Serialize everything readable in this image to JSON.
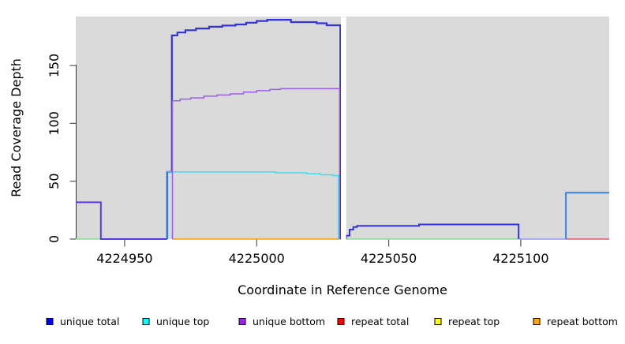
{
  "chart_data": {
    "type": "line",
    "title": "",
    "xlabel": "Coordinate in Reference Genome",
    "ylabel": "Read Coverage Depth",
    "xlim": [
      4224931.5,
      4225133.5
    ],
    "ylim": [
      0,
      192.3
    ],
    "x_ticks": [
      "4224950",
      "4225000",
      "4225050",
      "4225100"
    ],
    "x_tick_values": [
      4224950,
      4225000,
      4225050,
      4225100
    ],
    "y_ticks": [
      "0",
      "50",
      "100",
      "150"
    ],
    "y_tick_values": [
      0,
      50,
      100,
      150
    ],
    "panel_background": "#DADADA",
    "gap": {
      "x0": 4225031.9,
      "x1": 4225033.9
    },
    "grid": false,
    "legend_position": "bottom",
    "legend": [
      {
        "label": "unique total",
        "color": "#0000FF"
      },
      {
        "label": "unique top",
        "color": "#00FFFF"
      },
      {
        "label": "unique bottom",
        "color": "#A020F0"
      },
      {
        "label": "repeat total",
        "color": "#FF0000"
      },
      {
        "label": "repeat top",
        "color": "#FFFF00"
      },
      {
        "label": "repeat bottom",
        "color": "#FFA500"
      }
    ],
    "series": [
      {
        "name": "repeat bottom zero line",
        "color": "#FF9C00",
        "width": 1.6,
        "points": [
          [
            4224968.1,
            0
          ],
          [
            4225031.9,
            0
          ]
        ]
      },
      {
        "name": "zero overlap left green",
        "color": "#85DE9B",
        "width": 1.4,
        "points": [
          [
            4224931.5,
            0
          ],
          [
            4224941,
            0
          ]
        ]
      },
      {
        "name": "zero overlap mid green",
        "color": "#85DE9B",
        "width": 1.4,
        "points": [
          [
            4225033.9,
            0
          ],
          [
            4225099.2,
            0
          ]
        ]
      },
      {
        "name": "repeat total zero line",
        "color": "#E25B6E",
        "width": 1.6,
        "points": [
          [
            4225117.1,
            0
          ],
          [
            4225133.5,
            0
          ]
        ]
      },
      {
        "name": "zero lavender segment",
        "color": "#A3A3F2",
        "width": 1.8,
        "points": [
          [
            4225099.4,
            0
          ],
          [
            4225117.1,
            0
          ]
        ]
      },
      {
        "name": "unique total left plateau",
        "color": "#5838E0",
        "width": 2,
        "points": [
          [
            4224931.5,
            31.8
          ],
          [
            4224941,
            31.8
          ],
          [
            4224941,
            0
          ],
          [
            4224966.1,
            0
          ]
        ]
      },
      {
        "name": "unique total main",
        "color": "#3232E0",
        "width": 2.2,
        "points": [
          [
            4224966.1,
            0
          ],
          [
            4224966.1,
            58
          ],
          [
            4224967.9,
            58
          ],
          [
            4224967.9,
            176
          ],
          [
            4224970,
            176
          ],
          [
            4224970,
            178.5
          ],
          [
            4224973,
            178.5
          ],
          [
            4224973,
            180.5
          ],
          [
            4224977,
            180.5
          ],
          [
            4224977,
            182
          ],
          [
            4224982,
            182
          ],
          [
            4224982,
            183.5
          ],
          [
            4224987,
            183.5
          ],
          [
            4224987,
            184.5
          ],
          [
            4224992,
            184.5
          ],
          [
            4224992,
            185.5
          ],
          [
            4224996,
            185.5
          ],
          [
            4224996,
            187
          ],
          [
            4225000,
            187
          ],
          [
            4225000,
            188.5
          ],
          [
            4225004,
            188.5
          ],
          [
            4225004,
            189.5
          ],
          [
            4225013,
            189.5
          ],
          [
            4225013,
            187.5
          ],
          [
            4225022.7,
            187.5
          ],
          [
            4225022.7,
            186.5
          ],
          [
            4225026.5,
            186.5
          ],
          [
            4225026.5,
            184.8
          ],
          [
            4225031.7,
            184.8
          ],
          [
            4225031.7,
            0
          ]
        ]
      },
      {
        "name": "unique top",
        "color": "#3CDEEE",
        "width": 1.5,
        "points": [
          [
            4224966.1,
            0
          ],
          [
            4224966.1,
            58
          ],
          [
            4225007.1,
            58
          ],
          [
            4225007.1,
            57.3
          ],
          [
            4225019,
            57.3
          ],
          [
            4225019,
            56.5
          ],
          [
            4225024,
            56.5
          ],
          [
            4225024,
            55.6
          ],
          [
            4225028.9,
            55.6
          ],
          [
            4225028.9,
            54.8
          ],
          [
            4225031,
            54.8
          ],
          [
            4225031,
            0
          ]
        ]
      },
      {
        "name": "unique total rise overlay",
        "color": "#1E82E8",
        "width": 2,
        "points": [
          [
            4224966.1,
            0
          ],
          [
            4224966.1,
            58
          ]
        ]
      },
      {
        "name": "unique bottom",
        "color": "#9C5FE8",
        "width": 1.5,
        "points": [
          [
            4224968.1,
            0
          ],
          [
            4224968.1,
            119.5
          ],
          [
            4224971,
            119.5
          ],
          [
            4224971,
            121
          ],
          [
            4224975,
            121
          ],
          [
            4224975,
            122
          ],
          [
            4224980,
            122
          ],
          [
            4224980,
            123.5
          ],
          [
            4224985,
            123.5
          ],
          [
            4224985,
            124.5
          ],
          [
            4224990,
            124.5
          ],
          [
            4224990,
            125.5
          ],
          [
            4224995,
            125.5
          ],
          [
            4224995,
            127
          ],
          [
            4225000,
            127
          ],
          [
            4225000,
            128.3
          ],
          [
            4225005,
            128.3
          ],
          [
            4225005,
            129.3
          ],
          [
            4225009,
            129.3
          ],
          [
            4225009,
            130
          ],
          [
            4225031.4,
            130
          ],
          [
            4225031.4,
            0
          ]
        ]
      },
      {
        "name": "unique total right of gap",
        "color": "#3232E0",
        "width": 2,
        "points": [
          [
            4225033.9,
            0
          ],
          [
            4225033.9,
            3
          ],
          [
            4225035.2,
            3
          ],
          [
            4225035.2,
            8.2
          ],
          [
            4225036.6,
            8.2
          ],
          [
            4225036.6,
            10.4
          ],
          [
            4225038,
            10.4
          ],
          [
            4225038,
            11.4
          ],
          [
            4225061.5,
            11.4
          ],
          [
            4225061.5,
            12.6
          ],
          [
            4225099.2,
            12.6
          ],
          [
            4225099.2,
            0
          ]
        ]
      },
      {
        "name": "unique total right edge",
        "color": "#3B82E8",
        "width": 2,
        "points": [
          [
            4225117.1,
            0
          ],
          [
            4225117.1,
            40
          ],
          [
            4225133.5,
            40
          ]
        ]
      }
    ]
  }
}
